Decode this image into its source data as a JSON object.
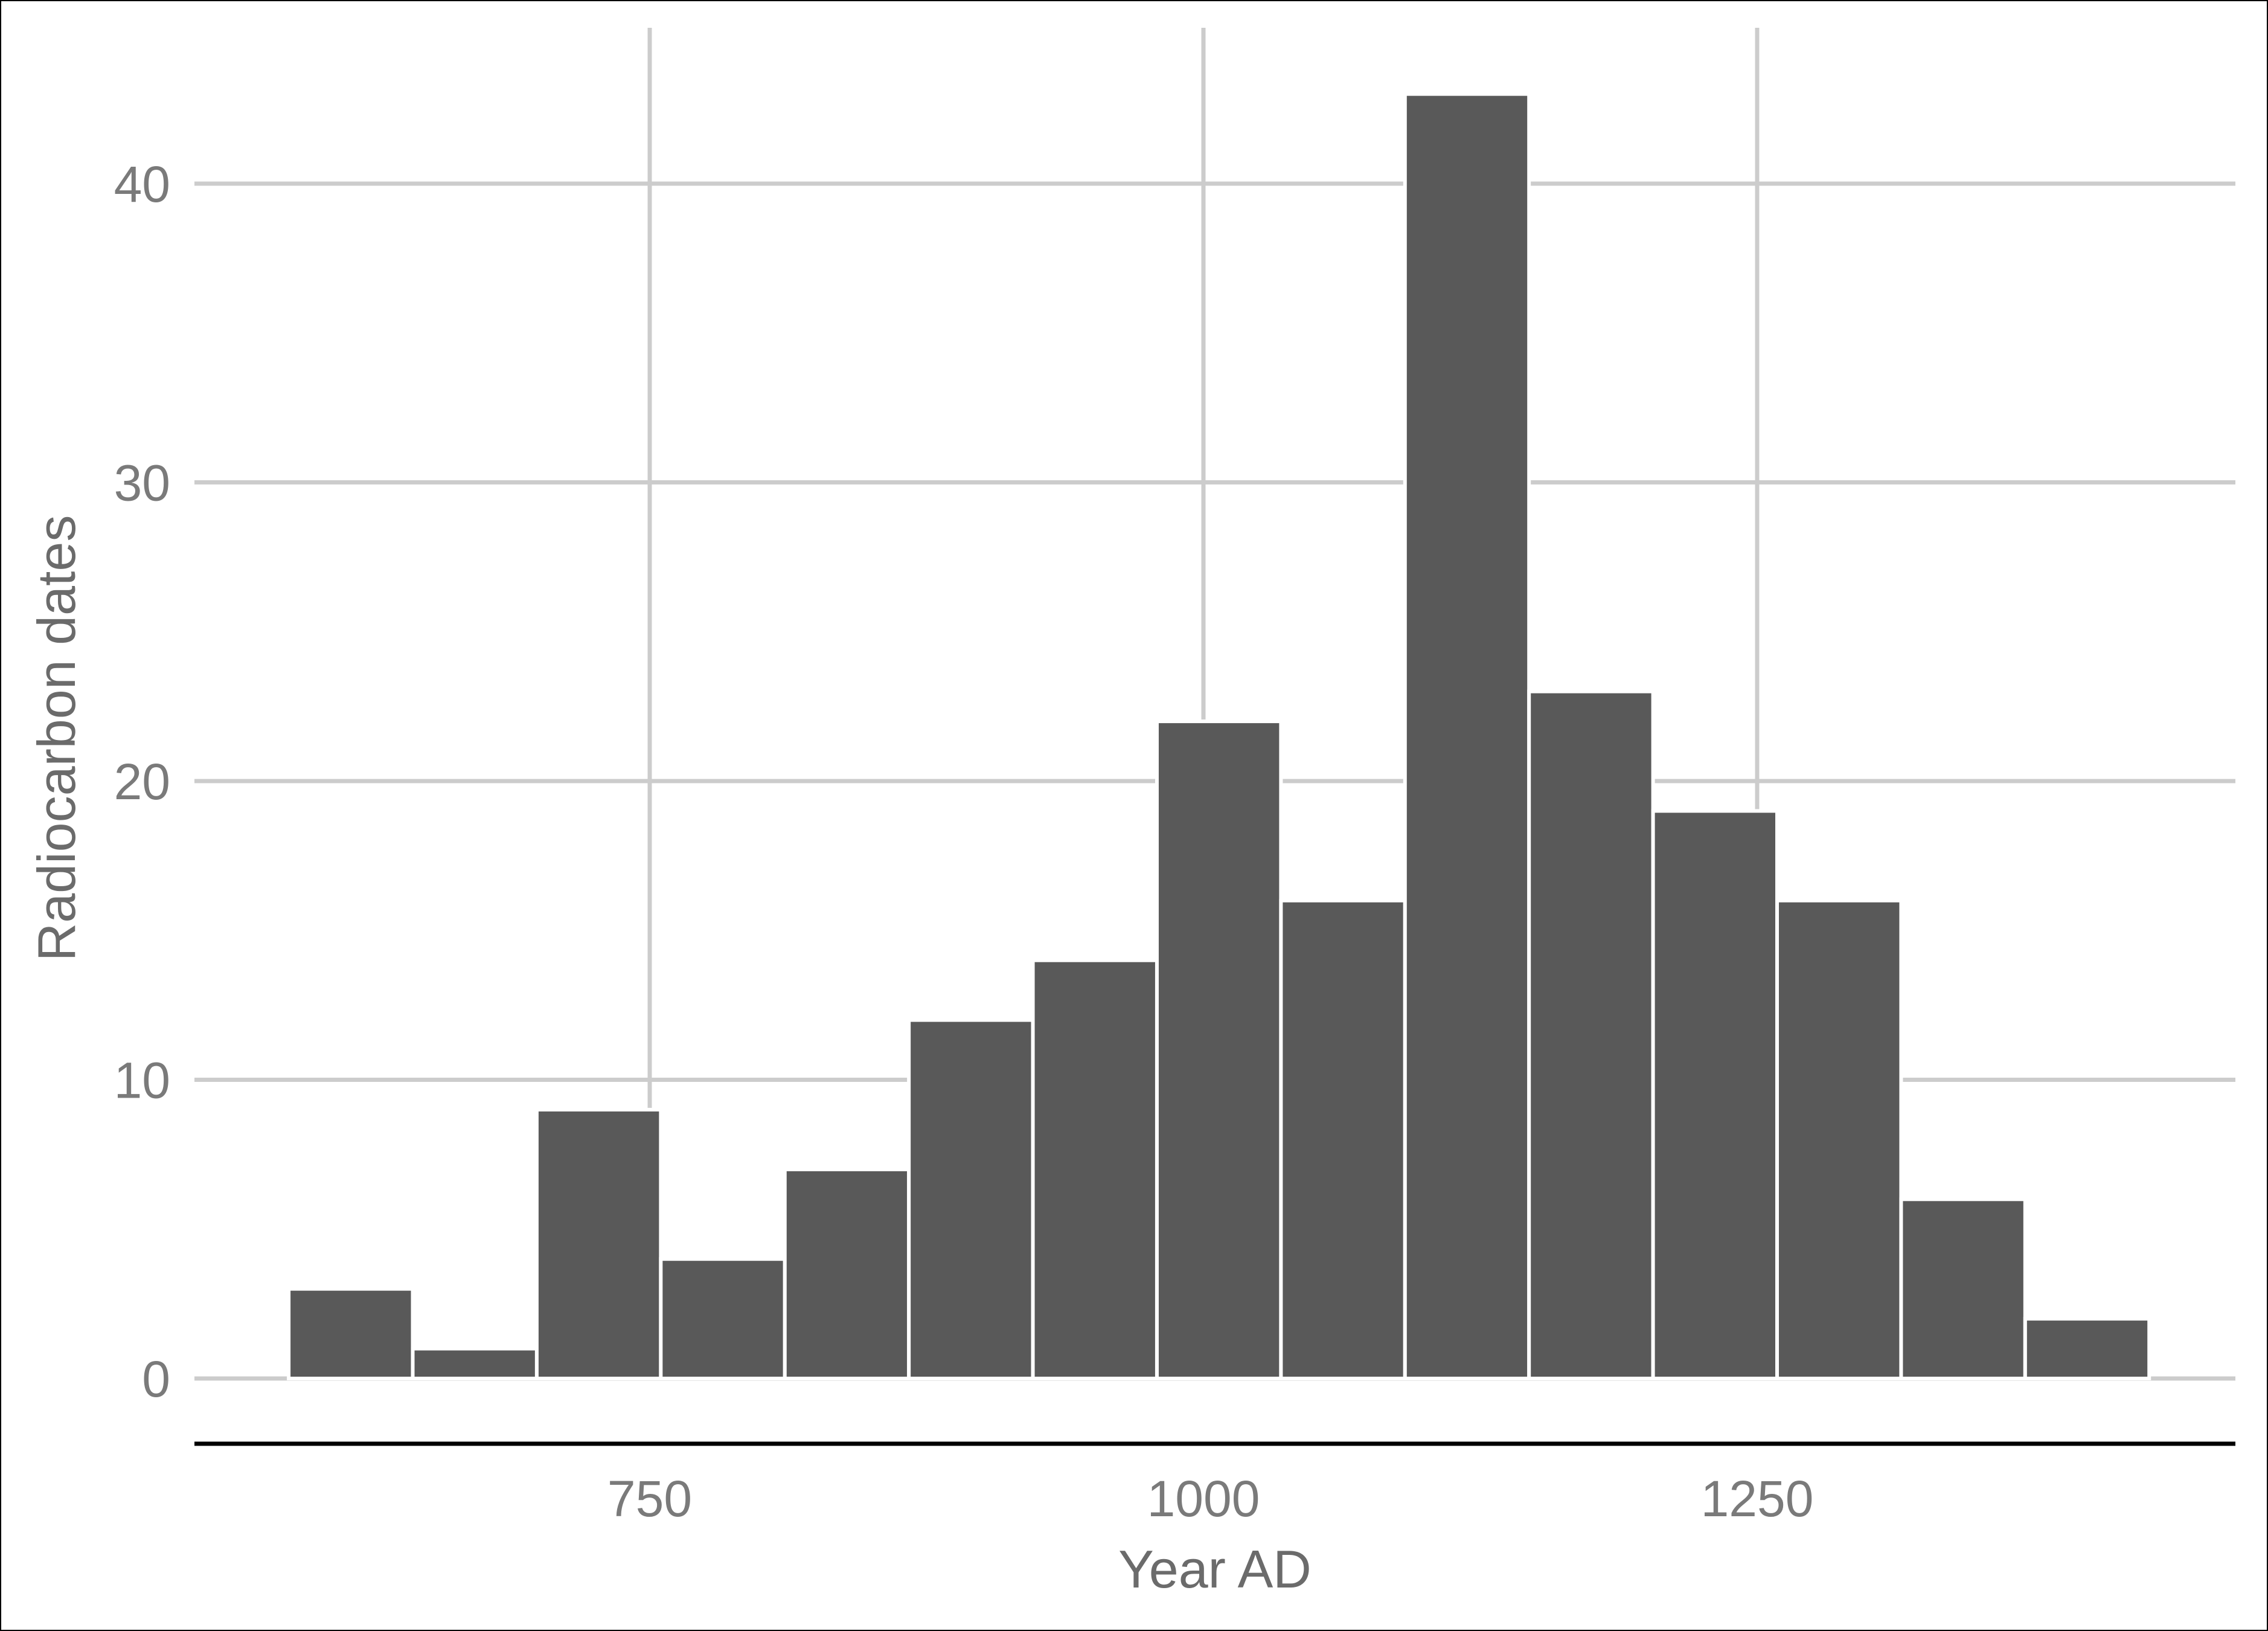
{
  "chart_data": {
    "type": "bar",
    "title": "",
    "xlabel": "Year AD",
    "ylabel": "Radiocarbon dates",
    "bin_width": 56,
    "bins": [
      {
        "start": 587,
        "end": 643,
        "count": 3
      },
      {
        "start": 643,
        "end": 699,
        "count": 1
      },
      {
        "start": 699,
        "end": 755,
        "count": 9
      },
      {
        "start": 755,
        "end": 811,
        "count": 4
      },
      {
        "start": 811,
        "end": 867,
        "count": 7
      },
      {
        "start": 867,
        "end": 923,
        "count": 12
      },
      {
        "start": 923,
        "end": 979,
        "count": 14
      },
      {
        "start": 979,
        "end": 1035,
        "count": 22
      },
      {
        "start": 1035,
        "end": 1091,
        "count": 16
      },
      {
        "start": 1091,
        "end": 1147,
        "count": 43
      },
      {
        "start": 1147,
        "end": 1203,
        "count": 23
      },
      {
        "start": 1203,
        "end": 1259,
        "count": 19
      },
      {
        "start": 1259,
        "end": 1315,
        "count": 16
      },
      {
        "start": 1315,
        "end": 1371,
        "count": 6
      },
      {
        "start": 1371,
        "end": 1427,
        "count": 2
      }
    ],
    "xlim": [
      545,
      1470
    ],
    "ylim": [
      0,
      43
    ],
    "x_ticks": [
      750,
      1000,
      1250
    ],
    "x_tick_labels": [
      "750",
      "1000",
      "1250"
    ],
    "y_ticks": [
      0,
      10,
      20,
      30,
      40
    ],
    "y_tick_labels": [
      "0",
      "10",
      "20",
      "30",
      "40"
    ],
    "grid": true,
    "legend": "none",
    "colors": {
      "bar_fill": "#595959",
      "bar_edge": "#ffffff",
      "grid": "#cccccc",
      "x_axis_line": "#000000",
      "tick_text": "#7a7a7a",
      "title_text": "#6b6b6b"
    }
  }
}
